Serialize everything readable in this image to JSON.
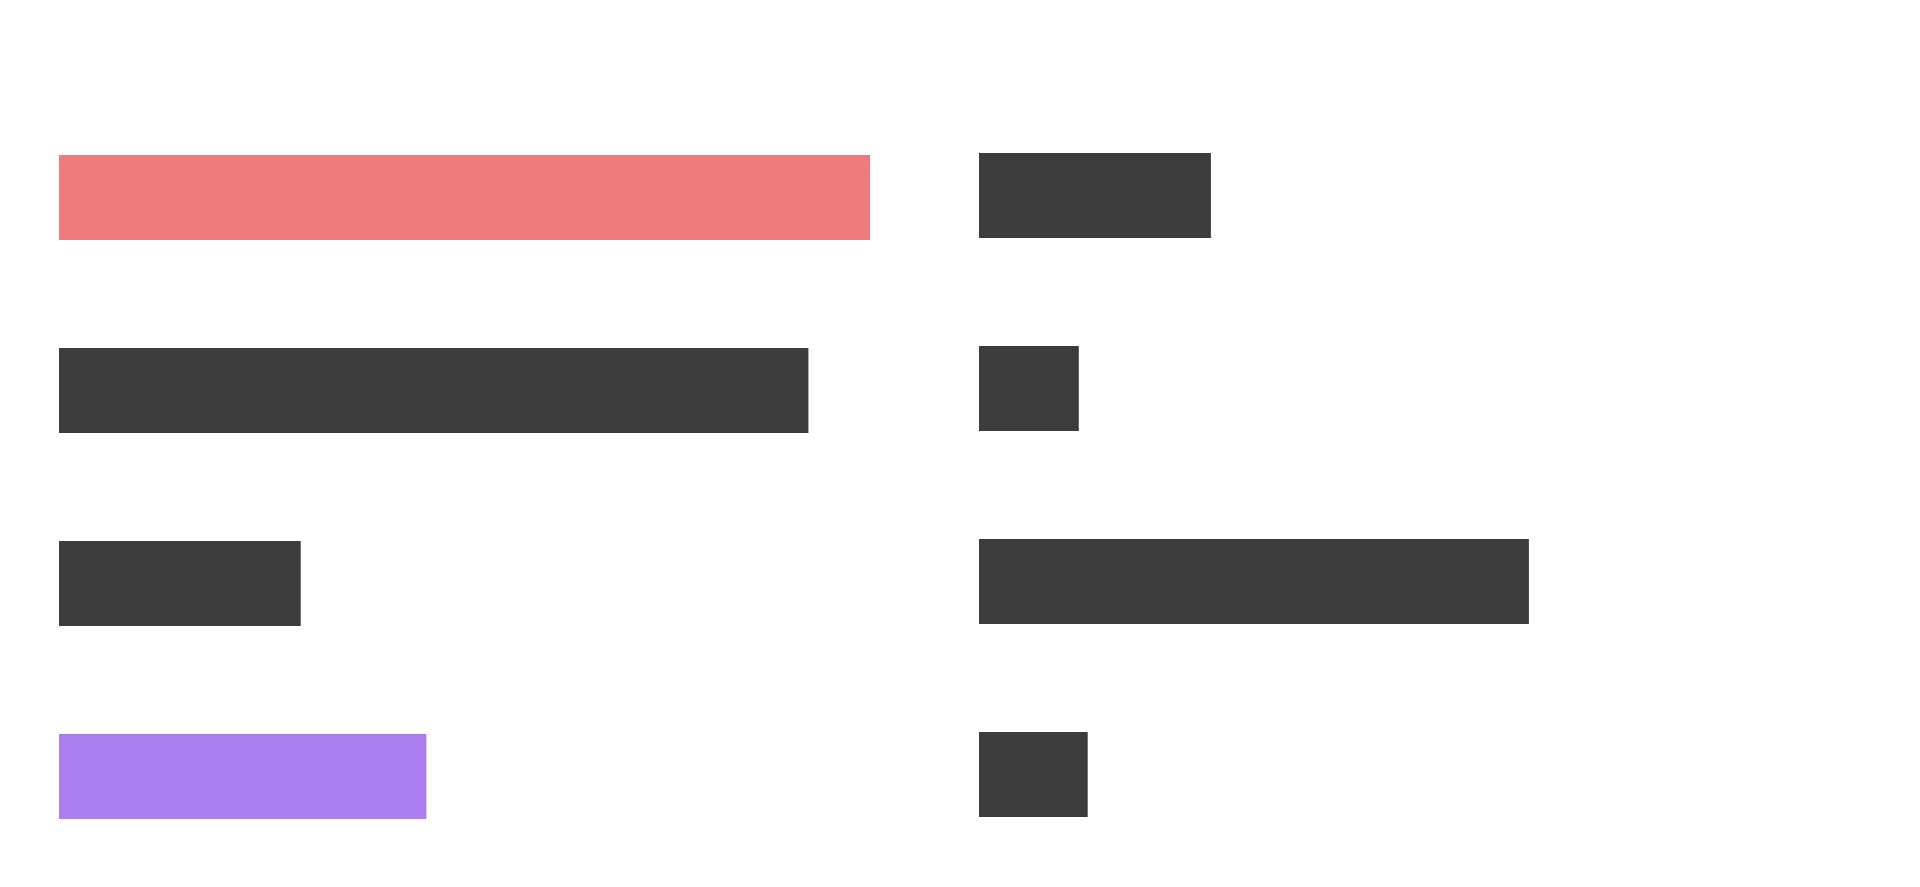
{
  "colors": {
    "background": "#ffffff",
    "default_bar": "#3c3c3c",
    "highlight_red": "#ef7a7c",
    "highlight_purple": "#ab7dee"
  },
  "chart_data": [
    {
      "type": "bar",
      "orientation": "horizontal",
      "title": "",
      "xlabel": "",
      "ylabel": "",
      "axes_visible": false,
      "grid": false,
      "legend": "none",
      "xlim": [
        0,
        100
      ],
      "series": [
        {
          "values": [
            100,
            92.4,
            29.8,
            45.3
          ],
          "colors": [
            "#ef7a7c",
            "#3c3c3c",
            "#3c3c3c",
            "#ab7dee"
          ]
        }
      ]
    },
    {
      "type": "bar",
      "orientation": "horizontal",
      "title": "",
      "xlabel": "",
      "ylabel": "",
      "axes_visible": false,
      "grid": false,
      "legend": "none",
      "xlim": [
        0,
        100
      ],
      "series": [
        {
          "values": [
            28.6,
            12.3,
            67.8,
            13.4
          ],
          "colors": [
            "#3c3c3c",
            "#3c3c3c",
            "#3c3c3c",
            "#3c3c3c"
          ]
        }
      ]
    }
  ]
}
